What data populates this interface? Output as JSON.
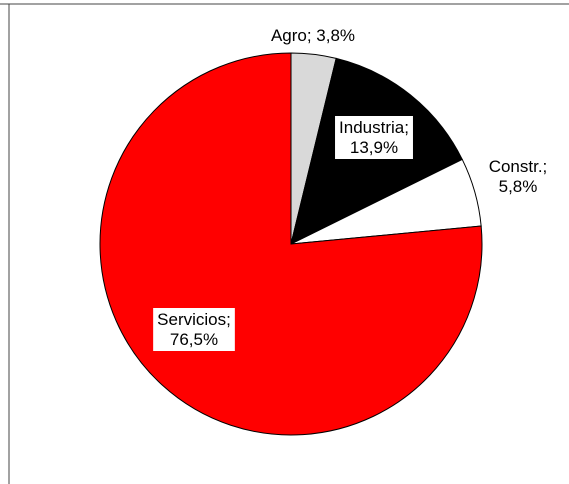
{
  "chart_data": {
    "type": "pie",
    "title": "",
    "slices": [
      {
        "name": "Agro",
        "value": 3.8,
        "label_line1": "Agro; 3,8%",
        "label_line2": "",
        "color": "#d9d9d9"
      },
      {
        "name": "Industria",
        "value": 13.9,
        "label_line1": "Industria;",
        "label_line2": "13,9%",
        "color": "#000000"
      },
      {
        "name": "Constr.",
        "value": 5.8,
        "label_line1": "Constr.;",
        "label_line2": "5,8%",
        "color": "#ffffff"
      },
      {
        "name": "Servicios",
        "value": 76.5,
        "label_line1": "Servicios;",
        "label_line2": "76,5%",
        "color": "#ff0000"
      }
    ],
    "start_angle": "12 o'clock",
    "direction": "clockwise",
    "legend": "none",
    "label_style": "category; percent"
  }
}
